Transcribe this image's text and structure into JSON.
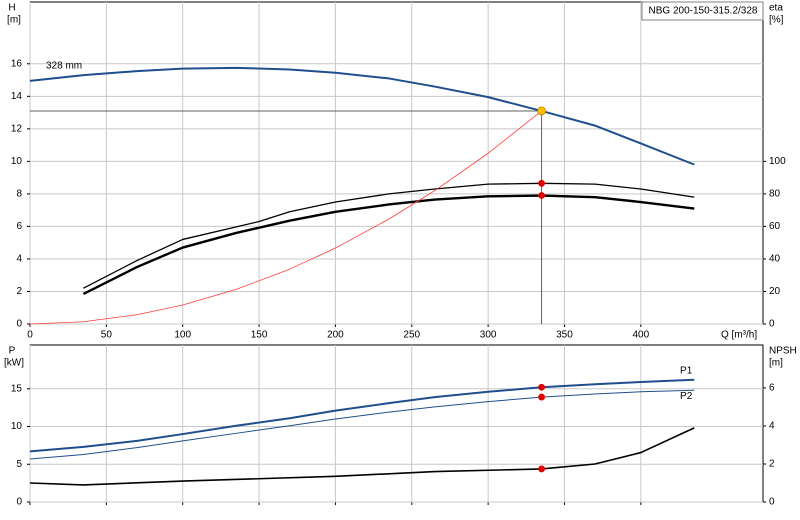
{
  "chart_data": [
    {
      "type": "line",
      "title": "NBG 200-150-315.2/328",
      "ylabel": "H",
      "yunit": "[m]",
      "y2label": "eta",
      "y2unit": "[%]",
      "xlabel": "Q [m³/h]",
      "xlim": [
        0,
        480
      ],
      "xticks": [
        0,
        50,
        100,
        150,
        200,
        250,
        300,
        350,
        400
      ],
      "ylim": [
        0,
        19.8
      ],
      "yticks": [
        0,
        2,
        4,
        6,
        8,
        10,
        12,
        14,
        16
      ],
      "y2lim": [
        0,
        198
      ],
      "y2ticks": [
        0,
        20,
        40,
        60,
        80,
        100
      ],
      "grid": true,
      "show_xtick_labels": true,
      "series": [
        {
          "name": "328 mm",
          "color": "#1f4e8c",
          "width": 2,
          "axis": "y",
          "x": [
            0,
            35,
            70,
            100,
            135,
            170,
            200,
            235,
            265,
            300,
            335,
            370,
            400,
            435
          ],
          "values": [
            14.95,
            15.3,
            15.55,
            15.7,
            15.75,
            15.65,
            15.45,
            15.1,
            14.6,
            13.95,
            13.1,
            12.2,
            11.1,
            9.8
          ]
        },
        {
          "color": "#000000",
          "width": 1.3,
          "axis": "y2",
          "x": [
            35,
            70,
            100,
            150,
            170,
            200,
            235,
            265,
            300,
            335,
            370,
            400,
            435
          ],
          "values": [
            22,
            39,
            52,
            63,
            69,
            75,
            80,
            83,
            86,
            86.5,
            86,
            83,
            78
          ]
        },
        {
          "color": "#000000",
          "width": 2.4,
          "axis": "y2",
          "x": [
            35,
            70,
            100,
            135,
            170,
            200,
            235,
            265,
            300,
            335,
            370,
            400,
            435
          ],
          "values": [
            18.5,
            35,
            47,
            56,
            63.5,
            69,
            73.5,
            76.5,
            78.5,
            79,
            78,
            75,
            71
          ]
        },
        {
          "color": "#ff3b3b",
          "width": 0.8,
          "axis": "y",
          "x": [
            0,
            35,
            70,
            100,
            135,
            170,
            200,
            235,
            265,
            300,
            335
          ],
          "values": [
            0,
            0.14,
            0.57,
            1.17,
            2.13,
            3.37,
            4.67,
            6.45,
            8.2,
            10.5,
            13.1
          ]
        }
      ],
      "markers": [
        {
          "x": 335,
          "value": 13.1,
          "color": "#ffc000",
          "axis": "y",
          "guides": true
        },
        {
          "x": 335,
          "value": 86.5,
          "color": "#e00000",
          "axis": "y2"
        },
        {
          "x": 335,
          "value": 79,
          "color": "#e00000",
          "axis": "y2"
        }
      ]
    },
    {
      "type": "line",
      "ylabel": "P",
      "yunit": "[kW]",
      "y2label": "NPSH",
      "y2unit": "[m]",
      "xlim": [
        0,
        480
      ],
      "xticks": [
        0,
        50,
        100,
        150,
        200,
        250,
        300,
        350,
        400
      ],
      "ylim": [
        0,
        20.8
      ],
      "yticks": [
        0,
        5,
        10,
        15
      ],
      "y2lim": [
        0,
        8.26
      ],
      "y2ticks": [
        0,
        2,
        4,
        6
      ],
      "grid": true,
      "show_xtick_labels": false,
      "series": [
        {
          "name": "P1",
          "color": "#1f4e8c",
          "width": 2,
          "axis": "y",
          "x": [
            0,
            35,
            70,
            100,
            135,
            170,
            200,
            235,
            265,
            300,
            335,
            370,
            400,
            435
          ],
          "values": [
            6.7,
            7.3,
            8.1,
            9.0,
            10.1,
            11.1,
            12.1,
            13.1,
            13.9,
            14.6,
            15.2,
            15.6,
            15.9,
            16.2
          ]
        },
        {
          "name": "P2",
          "color": "#1f4e8c",
          "width": 1,
          "axis": "y",
          "x": [
            0,
            35,
            70,
            100,
            135,
            170,
            200,
            235,
            265,
            300,
            335,
            370,
            400,
            435
          ],
          "values": [
            5.7,
            6.3,
            7.2,
            8.1,
            9.1,
            10.1,
            11.0,
            11.9,
            12.6,
            13.3,
            13.9,
            14.3,
            14.6,
            14.8
          ]
        },
        {
          "color": "#000000",
          "width": 1.6,
          "axis": "y2",
          "x": [
            0,
            35,
            100,
            200,
            265,
            335,
            370,
            400,
            435
          ],
          "values": [
            1.0,
            0.9,
            1.1,
            1.35,
            1.6,
            1.74,
            2.0,
            2.6,
            3.9
          ]
        }
      ],
      "markers": [
        {
          "x": 335,
          "value": 15.2,
          "color": "#e00000",
          "axis": "y"
        },
        {
          "x": 335,
          "value": 13.9,
          "color": "#e00000",
          "axis": "y"
        },
        {
          "x": 335,
          "value": 1.74,
          "color": "#e00000",
          "axis": "y2"
        }
      ]
    }
  ]
}
